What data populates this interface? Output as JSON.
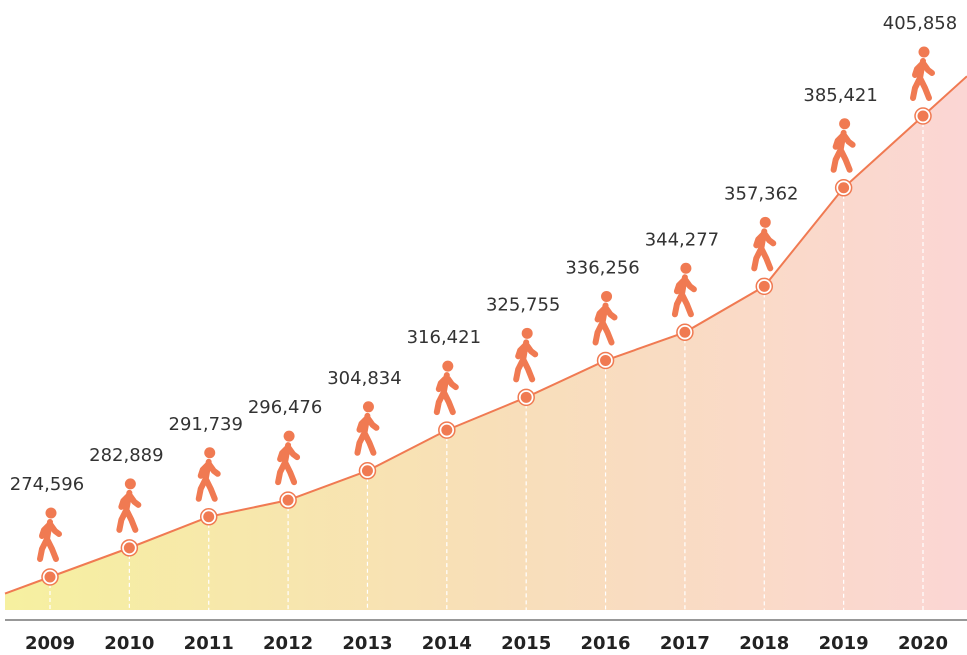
{
  "chart_data": {
    "type": "line",
    "categories": [
      "2009",
      "2010",
      "2011",
      "2012",
      "2013",
      "2014",
      "2015",
      "2016",
      "2017",
      "2018",
      "2019",
      "2020"
    ],
    "values": [
      274596,
      282889,
      291739,
      296476,
      304834,
      316421,
      325755,
      336256,
      344277,
      357362,
      385421,
      405858
    ],
    "value_labels": [
      "274,596",
      "282,889",
      "291,739",
      "296,476",
      "304,834",
      "316,421",
      "325,755",
      "336,256",
      "344,277",
      "357,362",
      "385,421",
      "405,858"
    ],
    "color": "#f07a52"
  }
}
